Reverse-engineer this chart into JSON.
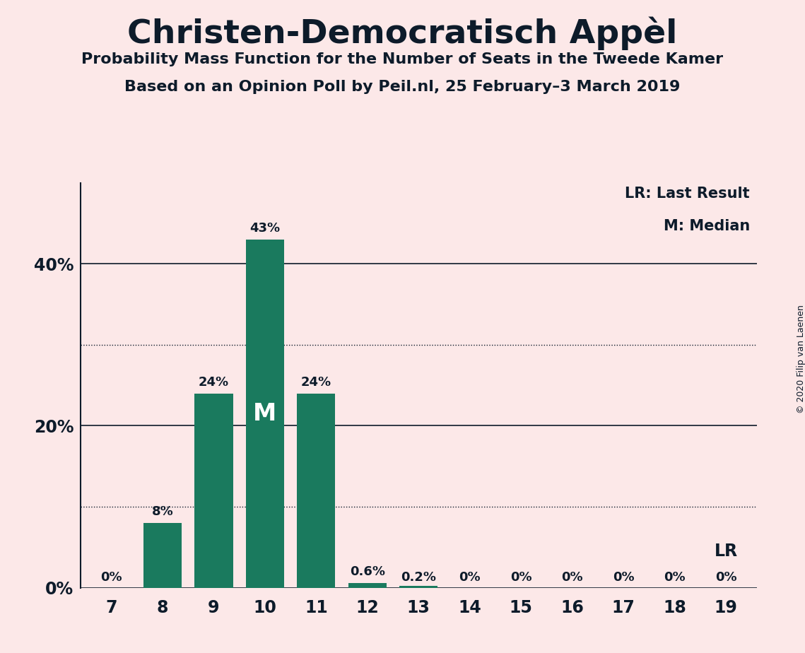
{
  "title": "Christen-Democratisch Appèl",
  "subtitle1": "Probability Mass Function for the Number of Seats in the Tweede Kamer",
  "subtitle2": "Based on an Opinion Poll by Peil.nl, 25 February–3 March 2019",
  "copyright": "© 2020 Filip van Laenen",
  "seats": [
    7,
    8,
    9,
    10,
    11,
    12,
    13,
    14,
    15,
    16,
    17,
    18,
    19
  ],
  "probabilities": [
    0.0,
    8.0,
    24.0,
    43.0,
    24.0,
    0.6,
    0.2,
    0.0,
    0.0,
    0.0,
    0.0,
    0.0,
    0.0
  ],
  "bar_color": "#1a7a5e",
  "background_color": "#fce8e8",
  "text_color": "#0d1b2a",
  "bar_labels": [
    "0%",
    "8%",
    "24%",
    "43%",
    "24%",
    "0.6%",
    "0.2%",
    "0%",
    "0%",
    "0%",
    "0%",
    "0%",
    "0%"
  ],
  "median_seat": 10,
  "median_label": "M",
  "lr_seat": 19,
  "lr_label": "LR",
  "yticks": [
    0,
    20,
    40
  ],
  "ytick_labels": [
    "0%",
    "20%",
    "40%"
  ],
  "ylim": [
    0,
    50
  ],
  "legend_lr": "LR: Last Result",
  "legend_m": "M: Median",
  "dotted_lines": [
    10,
    30
  ],
  "solid_lines": [
    0,
    20,
    40
  ]
}
